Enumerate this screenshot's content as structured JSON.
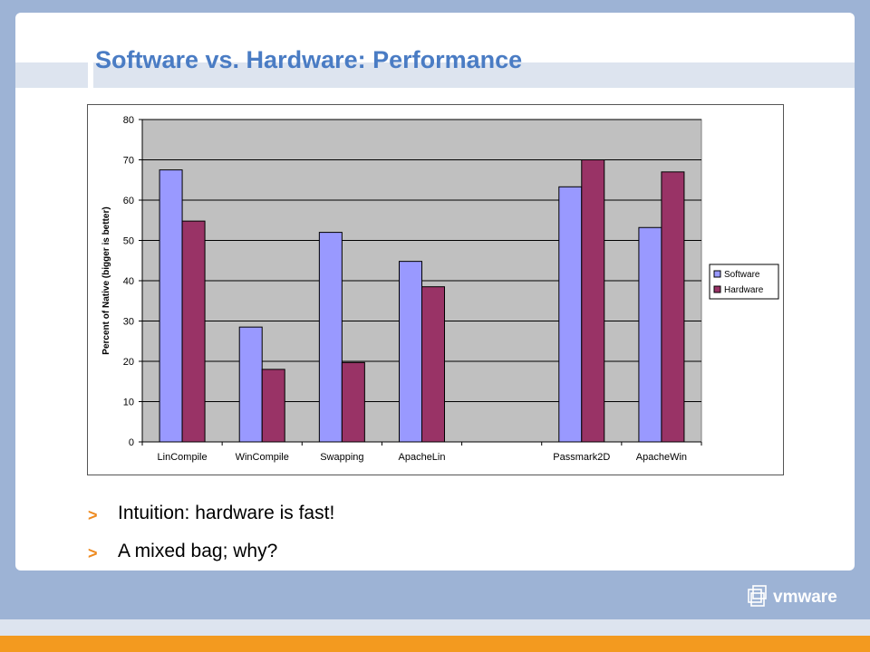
{
  "slide": {
    "title": "Software vs. Hardware: Performance",
    "bullets": [
      {
        "marker": ">",
        "text": "Intuition: hardware is fast!"
      },
      {
        "marker": ">",
        "text": "A mixed bag; why?"
      }
    ],
    "logo_text": "vmware"
  },
  "chart_data": {
    "type": "bar",
    "categories": [
      "LinCompile",
      "WinCompile",
      "Swapping",
      "ApacheLin",
      "",
      "Passmark2D",
      "ApacheWin"
    ],
    "series": [
      {
        "name": "Software",
        "values": [
          67.5,
          28.5,
          52,
          44.8,
          null,
          63.3,
          53.2
        ],
        "color": "#9999ff"
      },
      {
        "name": "Hardware",
        "values": [
          54.8,
          18,
          19.7,
          38.5,
          null,
          70,
          67
        ],
        "color": "#993366"
      }
    ],
    "ylabel": "Percent of Native (bigger is better)",
    "ylim": [
      0,
      80
    ],
    "yticks": [
      "0",
      "10",
      "20",
      "30",
      "40",
      "50",
      "60",
      "70",
      "80"
    ],
    "grid": true,
    "plot_background": "#c0c0c0",
    "legend_position": "right"
  }
}
